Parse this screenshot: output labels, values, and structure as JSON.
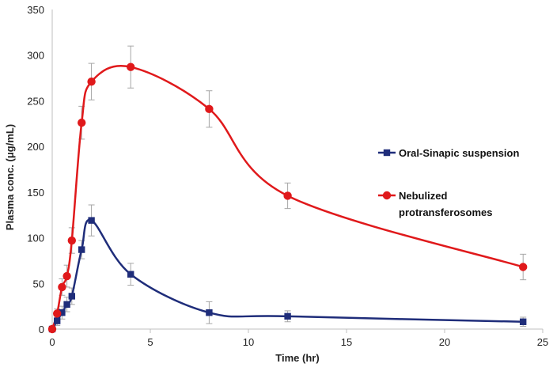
{
  "chart_data": {
    "type": "line",
    "title": "",
    "xlabel": "Time (hr)",
    "ylabel": "Plasma conc.  (μg/mL)",
    "xlim": [
      0,
      25
    ],
    "ylim": [
      0,
      350
    ],
    "xticks": [
      0,
      5,
      10,
      15,
      20,
      25
    ],
    "yticks": [
      0,
      50,
      100,
      150,
      200,
      250,
      300,
      350
    ],
    "legend_position": "right",
    "series": [
      {
        "name": "Oral-Sinapic suspension",
        "legend_lines": [
          "Oral-Sinapic suspension"
        ],
        "color": "#1f2d7a",
        "marker": "square",
        "x": [
          0,
          0.25,
          0.5,
          0.75,
          1,
          1.5,
          2,
          4,
          8,
          12,
          24
        ],
        "y": [
          0,
          9,
          18,
          27,
          36,
          87,
          119,
          60,
          18,
          14,
          8
        ],
        "err": [
          0,
          5,
          7,
          8,
          9,
          10,
          17,
          12,
          12,
          6,
          5
        ]
      },
      {
        "name": "Nebulized protransferosomes",
        "legend_lines": [
          "Nebulized",
          "protransferosomes"
        ],
        "color": "#e0191b",
        "marker": "circle",
        "x": [
          0,
          0.25,
          0.5,
          0.75,
          1,
          1.5,
          2,
          4,
          8,
          12,
          24
        ],
        "y": [
          0,
          17,
          46,
          58,
          97,
          226,
          271,
          287,
          241,
          146,
          68
        ],
        "err": [
          0,
          5,
          9,
          12,
          14,
          18,
          20,
          23,
          20,
          14,
          14
        ]
      }
    ]
  }
}
